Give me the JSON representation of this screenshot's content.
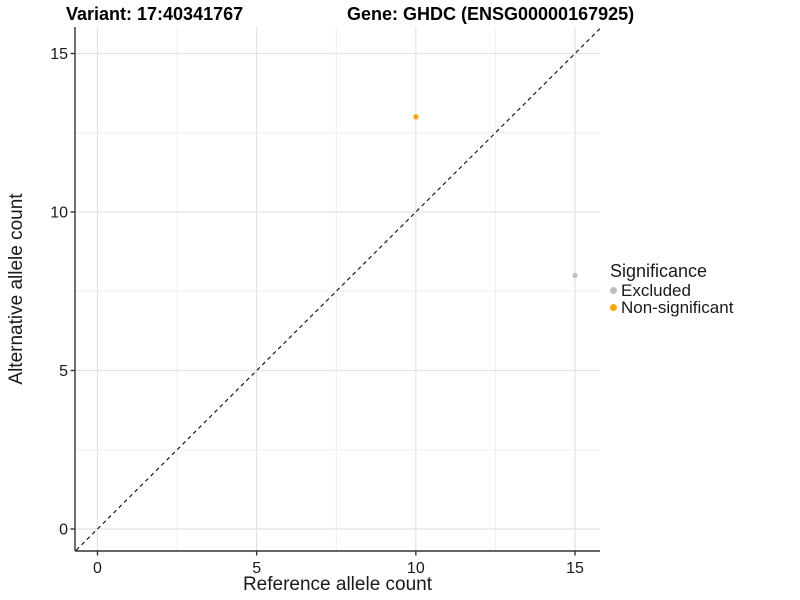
{
  "title": {
    "variant": "Variant: 17:40341767",
    "gene": "Gene: GHDC (ENSG00000167925)"
  },
  "chart_data": {
    "type": "scatter",
    "xlabel": "Reference allele count",
    "ylabel": "Alternative allele count",
    "xlim": [
      -0.7,
      15.8
    ],
    "ylim": [
      -0.7,
      15.8
    ],
    "x_ticks": [
      0,
      5,
      10,
      15
    ],
    "y_ticks": [
      0,
      5,
      10,
      15
    ],
    "x_minor_ticks": [
      2.5,
      7.5,
      12.5
    ],
    "y_minor_ticks": [
      2.5,
      7.5,
      12.5
    ],
    "grid": true,
    "points": [
      {
        "x": 15,
        "y": 8,
        "series": "Excluded"
      },
      {
        "x": 10,
        "y": 13,
        "series": "Non-significant"
      }
    ],
    "diagonal": {
      "slope": 1,
      "intercept": 0,
      "style": "dashed",
      "color": "#1a1a1a"
    },
    "legend": {
      "title": "Significance",
      "position": "right",
      "entries": [
        {
          "label": "Excluded",
          "color": "#BEBEBE"
        },
        {
          "label": "Non-significant",
          "color": "#FFA500"
        }
      ]
    },
    "colors": {
      "major_gridline": "#E3E3E3",
      "minor_gridline": "#EDEDED",
      "axis_line": "#333333"
    }
  }
}
